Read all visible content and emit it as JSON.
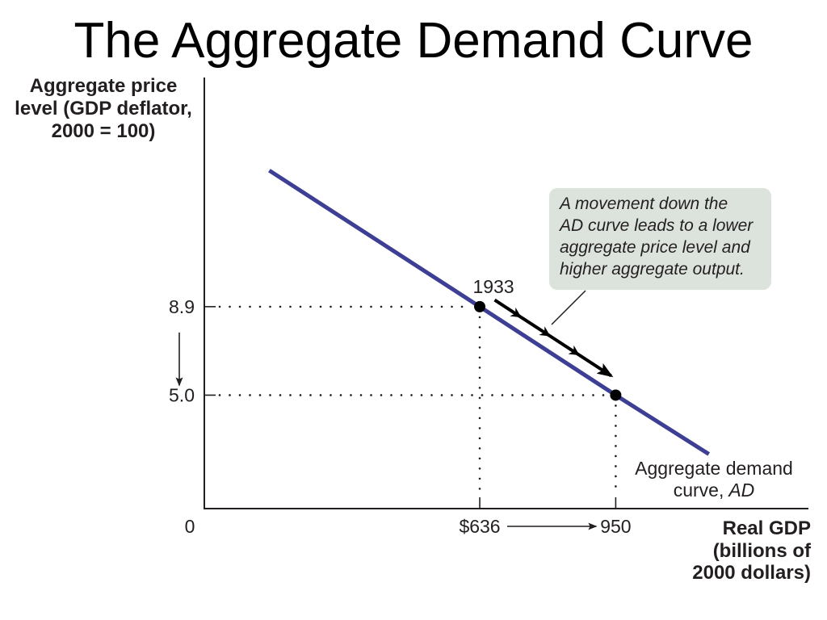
{
  "chart_data": {
    "type": "line",
    "title": "The Aggregate Demand Curve",
    "ylabel_lines": [
      "Aggregate price",
      "level (GDP deflator,",
      "2000 = 100)"
    ],
    "xlabel_lines": [
      "Real GDP",
      "(billions of",
      "2000 dollars)"
    ],
    "origin_label": "0",
    "xlim": [
      0,
      1395
    ],
    "ylim": [
      0,
      19
    ],
    "x_ticks": [
      {
        "value": 636,
        "label": "$636"
      },
      {
        "value": 950,
        "label": "950"
      }
    ],
    "y_ticks": [
      {
        "value": 8.9,
        "label": "8.9"
      },
      {
        "value": 5.0,
        "label": "5.0"
      }
    ],
    "series": [
      {
        "name": "AD",
        "label_lines": [
          "Aggregate demand",
          "curve,"
        ],
        "x": [
          150,
          636,
          950,
          1165
        ],
        "y": [
          14.9,
          8.9,
          5.0,
          2.4
        ],
        "color": "#3d3f94"
      }
    ],
    "points": [
      {
        "x": 636,
        "y": 8.9,
        "label": "1933"
      },
      {
        "x": 950,
        "y": 5.0
      }
    ],
    "point_color": "#000000",
    "dotted_drop_lines": true,
    "grid": false,
    "annotation": {
      "lines": [
        "A movement down the",
        "AD curve leads to a lower",
        "aggregate price level and",
        "higher aggregate output."
      ],
      "fill": "#dce3dd"
    }
  }
}
